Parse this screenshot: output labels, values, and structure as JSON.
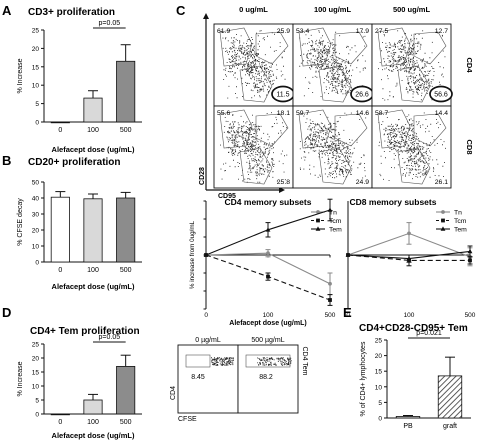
{
  "panels": {
    "A": {
      "letter": "A",
      "title": "CD3+ proliferation"
    },
    "B": {
      "letter": "B",
      "title": "CD20+ proliferation"
    },
    "C": {
      "letter": "C"
    },
    "D": {
      "letter": "D",
      "title": "CD4+ Tem proliferation"
    },
    "E": {
      "letter": "E",
      "title": "CD4+CD28-CD95+ Tem"
    }
  },
  "flow_C": {
    "columns": [
      "0 ug/mL",
      "100 ug/mL",
      "500 ug/mL"
    ],
    "row_labels": [
      "CD4",
      "CD8"
    ],
    "y_axis_label": "CD28",
    "x_axis_label": "CD95",
    "rows": [
      [
        {
          "tl": "61.9",
          "tr": "25.9",
          "bl": "",
          "br": "11.5",
          "circled": true
        },
        {
          "tl": "53.4",
          "tr": "17.9",
          "bl": "",
          "br": "26.6",
          "circled": true
        },
        {
          "tl": "27.5",
          "tr": "12.7",
          "bl": "",
          "br": "56.6",
          "circled": true
        }
      ],
      [
        {
          "tl": "55.6",
          "tr": "18.1",
          "bl": "",
          "br": "25.8",
          "circled": false
        },
        {
          "tl": "59.7",
          "tr": "14.6",
          "bl": "",
          "br": "24.9",
          "circled": false
        },
        {
          "tl": "58.7",
          "tr": "14.4",
          "bl": "",
          "br": "26.1",
          "circled": false
        }
      ]
    ]
  },
  "flow_D": {
    "columns": [
      "0 µg/mL",
      "500 µg/mL"
    ],
    "values": [
      "8.45",
      "88.2"
    ],
    "y_axis_label": "CD4",
    "x_axis_label": "CFSE",
    "right_label": "CD4 Tem"
  },
  "chart_data": [
    {
      "id": "A",
      "type": "bar",
      "title": "CD3+ proliferation",
      "xlabel": "Alefacept dose (ug/mL)",
      "ylabel": "% Increase",
      "categories": [
        "0",
        "100",
        "500"
      ],
      "values": [
        0,
        6.5,
        16.5
      ],
      "errors": [
        0,
        2,
        4.5
      ],
      "fills": [
        "#ffffff",
        "#d9d9d9",
        "#8c8c8c"
      ],
      "ylim": [
        0,
        25
      ],
      "yticks": [
        "0",
        "5",
        "10",
        "15",
        "20",
        "25"
      ],
      "bracket": {
        "from": 1,
        "to": 2,
        "label": "p=0.05"
      }
    },
    {
      "id": "B",
      "type": "bar",
      "title": "CD20+ proliferation",
      "xlabel": "Alefacept dose (ug/mL)",
      "ylabel": "% CFSE decay",
      "categories": [
        "0",
        "100",
        "500"
      ],
      "values": [
        40.5,
        39.5,
        40
      ],
      "errors": [
        3.5,
        3,
        3.5
      ],
      "fills": [
        "#ffffff",
        "#d9d9d9",
        "#8c8c8c"
      ],
      "ylim": [
        0,
        50
      ],
      "yticks": [
        "0",
        "10",
        "20",
        "30",
        "40",
        "50"
      ]
    },
    {
      "id": "C-CD4",
      "type": "line",
      "title": "CD4 memory subsets",
      "xlabel": "Alefacept dose (ug/mL)",
      "ylabel": "% increase from 0ug/mL",
      "categories": [
        "0",
        "100",
        "500"
      ],
      "ylim": [
        -15,
        15
      ],
      "yticks": [
        "-15",
        "-10",
        "-5",
        "0",
        "5",
        "10",
        "15"
      ],
      "legend_position": "top-right",
      "series": [
        {
          "name": "Tn",
          "values": [
            0,
            0.5,
            -8
          ],
          "errors": [
            0,
            1,
            3
          ],
          "color": "#8a8a8a",
          "dash": "",
          "marker": "circle"
        },
        {
          "name": "Tcm",
          "values": [
            0,
            -6,
            -12.5
          ],
          "errors": [
            0,
            1,
            1.5
          ],
          "color": "#111111",
          "dash": "5,3",
          "marker": "square"
        },
        {
          "name": "Tem",
          "values": [
            0,
            7,
            12.5
          ],
          "errors": [
            0,
            2,
            3
          ],
          "color": "#111111",
          "dash": "",
          "marker": "triangle"
        }
      ]
    },
    {
      "id": "C-CD8",
      "type": "line",
      "title": "CD8 memory subsets",
      "categories": [
        "0",
        "100",
        "500"
      ],
      "ylim": [
        -15,
        15
      ],
      "yticks": [
        "-15",
        "-10",
        "-5",
        "0",
        "5",
        "10",
        "15"
      ],
      "legend_position": "top-right",
      "series": [
        {
          "name": "Tn",
          "values": [
            0,
            6,
            -0.5
          ],
          "errors": [
            0,
            3,
            2.5
          ],
          "color": "#8a8a8a",
          "dash": "",
          "marker": "circle"
        },
        {
          "name": "Tcm",
          "values": [
            0,
            -1.5,
            -1.5
          ],
          "errors": [
            0,
            1.5,
            1
          ],
          "color": "#111111",
          "dash": "5,3",
          "marker": "square"
        },
        {
          "name": "Tem",
          "values": [
            0,
            -1,
            1
          ],
          "errors": [
            0,
            1,
            1.5
          ],
          "color": "#111111",
          "dash": "",
          "marker": "triangle"
        }
      ]
    },
    {
      "id": "D",
      "type": "bar",
      "title": "CD4+ Tem proliferation",
      "xlabel": "Alefacept dose (ug/mL)",
      "ylabel": "% Increase",
      "categories": [
        "0",
        "100",
        "500"
      ],
      "values": [
        0,
        5,
        17
      ],
      "errors": [
        0,
        2,
        4
      ],
      "fills": [
        "#ffffff",
        "#d9d9d9",
        "#8c8c8c"
      ],
      "ylim": [
        0,
        25
      ],
      "yticks": [
        "0",
        "5",
        "10",
        "15",
        "20",
        "25"
      ],
      "bracket": {
        "from": 1,
        "to": 2,
        "label": "p=0.05"
      }
    },
    {
      "id": "E",
      "type": "bar",
      "title": "CD4+CD28-CD95+ Tem",
      "xlabel": "",
      "ylabel": "% of CD4+ lymphocytes",
      "categories": [
        "PB",
        "graft"
      ],
      "values": [
        0.5,
        13.5
      ],
      "errors": [
        0.3,
        6
      ],
      "fills": [
        "#d9d9d9",
        "hatch"
      ],
      "ylim": [
        0,
        25
      ],
      "yticks": [
        "0",
        "5",
        "10",
        "15",
        "20",
        "25"
      ],
      "bracket": {
        "from": 0,
        "to": 1,
        "label": "p=0.021"
      }
    }
  ]
}
